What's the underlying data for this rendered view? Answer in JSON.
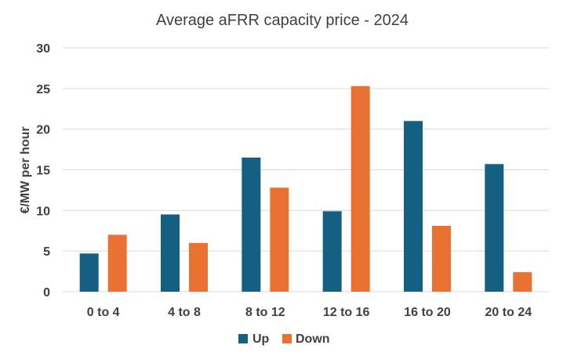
{
  "chart_data": {
    "type": "bar",
    "title": "Average aFRR capacity price - 2024",
    "xlabel": "",
    "ylabel": "€/MW per hour",
    "categories": [
      "0 to 4",
      "4 to 8",
      "8 to 12",
      "12 to 16",
      "16 to 20",
      "20 to 24"
    ],
    "series": [
      {
        "name": "Up",
        "color": "#156082",
        "values": [
          4.7,
          9.5,
          16.5,
          9.9,
          21.0,
          15.7
        ]
      },
      {
        "name": "Down",
        "color": "#e97132",
        "values": [
          7.0,
          6.0,
          12.8,
          25.3,
          8.1,
          2.4
        ]
      }
    ],
    "ylim": [
      0,
      30
    ],
    "yticks": [
      0,
      5,
      10,
      15,
      20,
      25,
      30
    ],
    "grid": true,
    "legend": "bottom"
  }
}
